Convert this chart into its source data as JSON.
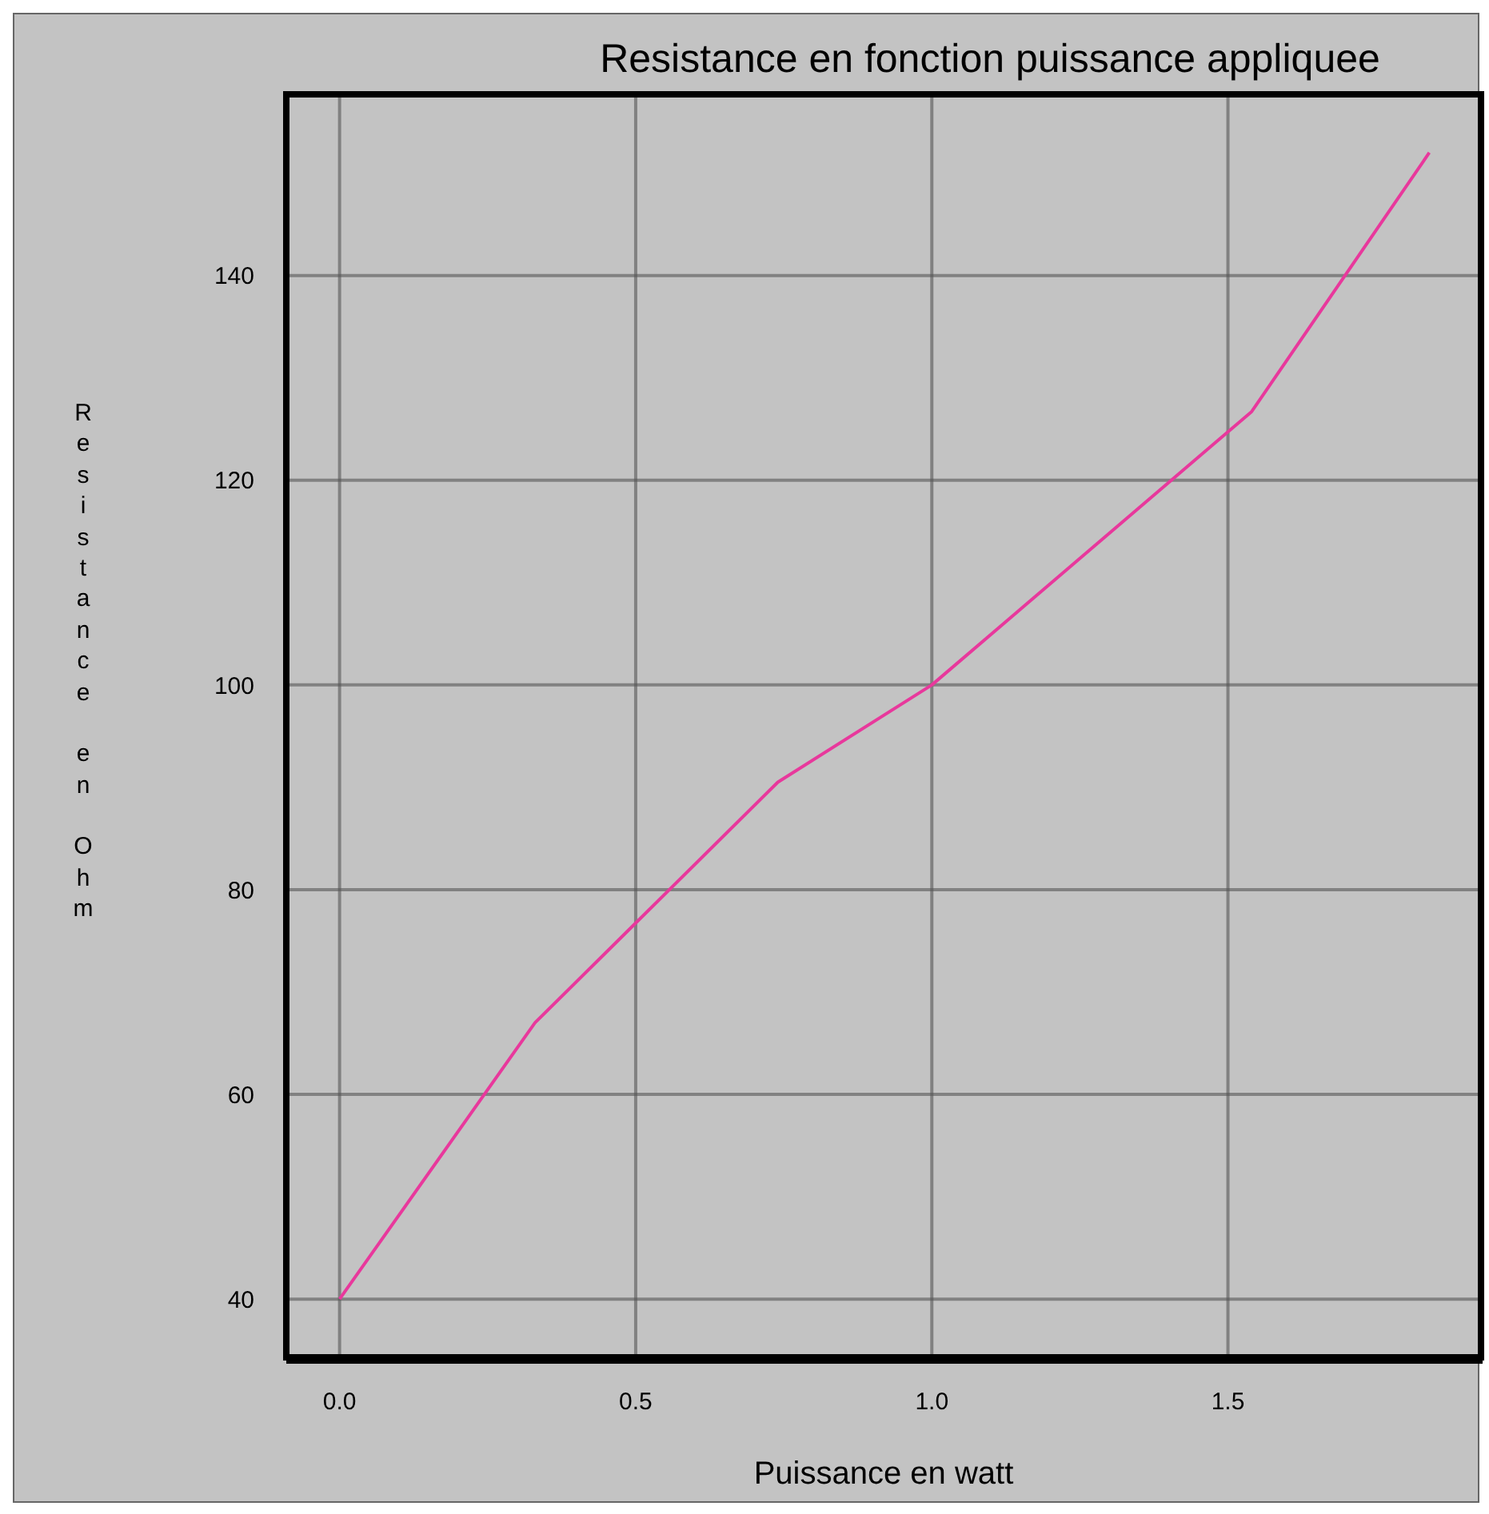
{
  "chart_data": {
    "type": "line",
    "title": "Resistance en fonction puissance appliquee",
    "xlabel": "Puissance en watt",
    "ylabel": "Resistance en Ohm",
    "x": [
      0,
      0.33,
      0.74,
      1.0,
      1.54,
      1.84
    ],
    "series": [
      {
        "color": "#e8389c",
        "values": [
          40,
          67,
          90.5,
          100,
          126.7,
          152
        ]
      }
    ],
    "xlim": [
      -0.09,
      1.93
    ],
    "ylim": [
      34,
      157.7
    ],
    "xticks": [
      {
        "value": 0,
        "label": "0.0"
      },
      {
        "value": 0.5,
        "label": "0.5"
      },
      {
        "value": 1,
        "label": "1.0"
      },
      {
        "value": 1.5,
        "label": "1.5"
      }
    ],
    "yticks": [
      40,
      60,
      80,
      100,
      120,
      140
    ],
    "grid": true,
    "marker": "none",
    "line_style": "solid",
    "legend": false
  }
}
